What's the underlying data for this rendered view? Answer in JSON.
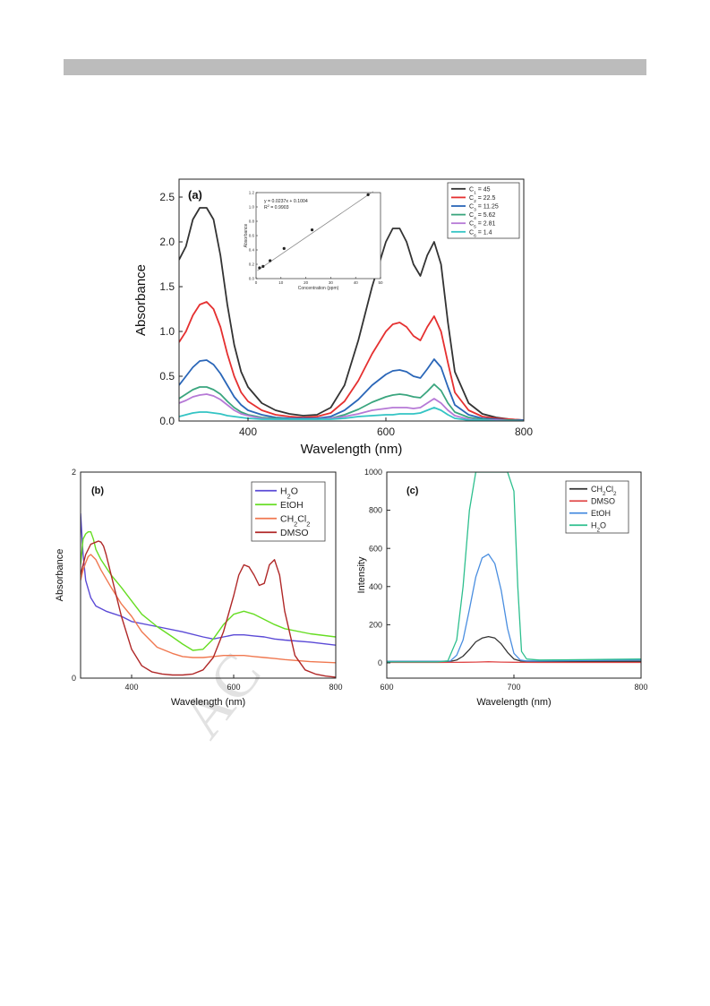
{
  "watermark": "AC",
  "chart_data": [
    {
      "panel": "(a)",
      "type": "line",
      "xlabel": "Wavelength (nm)",
      "ylabel": "Absorbance",
      "xlim": [
        300,
        800
      ],
      "ylim": [
        0,
        2.7
      ],
      "xticks": [
        400,
        600,
        800
      ],
      "yticks": [
        0.0,
        0.5,
        1.0,
        1.5,
        2.0,
        2.5
      ],
      "legend_position": "top-right",
      "series": [
        {
          "name": "C1 = 45",
          "label_main": "C",
          "label_sub": "1",
          "label_rest": " = 45",
          "color": "#333333",
          "x": [
            300,
            310,
            320,
            330,
            340,
            350,
            360,
            370,
            380,
            390,
            400,
            420,
            440,
            460,
            480,
            500,
            520,
            540,
            560,
            580,
            600,
            610,
            620,
            630,
            640,
            650,
            660,
            670,
            680,
            690,
            700,
            720,
            740,
            760,
            780,
            800
          ],
          "y": [
            1.8,
            1.95,
            2.25,
            2.38,
            2.38,
            2.25,
            1.85,
            1.3,
            0.85,
            0.55,
            0.38,
            0.2,
            0.12,
            0.08,
            0.06,
            0.07,
            0.15,
            0.4,
            0.9,
            1.5,
            2.0,
            2.15,
            2.15,
            2.0,
            1.75,
            1.62,
            1.85,
            2.0,
            1.75,
            1.1,
            0.55,
            0.2,
            0.08,
            0.04,
            0.02,
            0.01
          ]
        },
        {
          "name": "C2 = 22.5",
          "label_main": "C",
          "label_sub": "2",
          "label_rest": " = 22.5",
          "color": "#e53030",
          "x": [
            300,
            310,
            320,
            330,
            340,
            350,
            360,
            370,
            380,
            390,
            400,
            420,
            440,
            460,
            480,
            500,
            520,
            540,
            560,
            580,
            600,
            610,
            620,
            630,
            640,
            650,
            660,
            670,
            680,
            690,
            700,
            720,
            740,
            760,
            780,
            800
          ],
          "y": [
            0.88,
            1.0,
            1.18,
            1.3,
            1.33,
            1.25,
            1.05,
            0.75,
            0.5,
            0.32,
            0.22,
            0.12,
            0.07,
            0.05,
            0.04,
            0.05,
            0.09,
            0.22,
            0.45,
            0.75,
            1.0,
            1.08,
            1.1,
            1.05,
            0.95,
            0.9,
            1.05,
            1.17,
            1.0,
            0.65,
            0.32,
            0.12,
            0.05,
            0.03,
            0.02,
            0.01
          ]
        },
        {
          "name": "C3 = 11.25",
          "label_main": "C",
          "label_sub": "3",
          "label_rest": " = 11.25",
          "color": "#2a66b8",
          "x": [
            300,
            310,
            320,
            330,
            340,
            350,
            360,
            370,
            380,
            390,
            400,
            420,
            440,
            460,
            480,
            500,
            520,
            540,
            560,
            580,
            600,
            610,
            620,
            630,
            640,
            650,
            660,
            670,
            680,
            690,
            700,
            720,
            740,
            760,
            780,
            800
          ],
          "y": [
            0.4,
            0.5,
            0.6,
            0.67,
            0.68,
            0.63,
            0.53,
            0.4,
            0.27,
            0.18,
            0.12,
            0.07,
            0.04,
            0.03,
            0.03,
            0.03,
            0.05,
            0.12,
            0.24,
            0.4,
            0.52,
            0.56,
            0.57,
            0.55,
            0.5,
            0.48,
            0.58,
            0.69,
            0.6,
            0.38,
            0.18,
            0.07,
            0.03,
            0.02,
            0.01,
            0.01
          ]
        },
        {
          "name": "C4 = 5.62",
          "label_main": "C",
          "label_sub": "4",
          "label_rest": " = 5.62",
          "color": "#3aa57e",
          "x": [
            300,
            310,
            320,
            330,
            340,
            350,
            360,
            370,
            380,
            390,
            400,
            420,
            440,
            460,
            480,
            500,
            520,
            540,
            560,
            580,
            600,
            610,
            620,
            630,
            640,
            650,
            660,
            670,
            680,
            690,
            700,
            720,
            740,
            760,
            780,
            800
          ],
          "y": [
            0.25,
            0.3,
            0.35,
            0.38,
            0.38,
            0.35,
            0.3,
            0.22,
            0.15,
            0.1,
            0.07,
            0.04,
            0.03,
            0.02,
            0.02,
            0.02,
            0.03,
            0.07,
            0.13,
            0.21,
            0.27,
            0.29,
            0.3,
            0.29,
            0.27,
            0.26,
            0.33,
            0.41,
            0.34,
            0.2,
            0.1,
            0.04,
            0.02,
            0.01,
            0.01,
            0.0
          ]
        },
        {
          "name": "C5 = 2.81",
          "label_main": "C",
          "label_sub": "5",
          "label_rest": " = 2.81",
          "color": "#b679d6",
          "x": [
            300,
            310,
            320,
            330,
            340,
            350,
            360,
            370,
            380,
            390,
            400,
            420,
            440,
            460,
            480,
            500,
            520,
            540,
            560,
            580,
            600,
            610,
            620,
            630,
            640,
            650,
            660,
            670,
            680,
            690,
            700,
            720,
            740,
            760,
            780,
            800
          ],
          "y": [
            0.2,
            0.23,
            0.27,
            0.29,
            0.3,
            0.28,
            0.24,
            0.18,
            0.12,
            0.08,
            0.06,
            0.03,
            0.02,
            0.02,
            0.02,
            0.02,
            0.03,
            0.05,
            0.08,
            0.12,
            0.14,
            0.15,
            0.15,
            0.15,
            0.14,
            0.15,
            0.2,
            0.25,
            0.2,
            0.12,
            0.06,
            0.02,
            0.01,
            0.01,
            0.0,
            0.0
          ]
        },
        {
          "name": "C6 = 1.4",
          "label_main": "C",
          "label_sub": "6",
          "label_rest": " = 1.4",
          "color": "#33c4c4",
          "x": [
            300,
            310,
            320,
            330,
            340,
            350,
            360,
            370,
            380,
            390,
            400,
            420,
            440,
            460,
            480,
            500,
            520,
            540,
            560,
            580,
            600,
            610,
            620,
            630,
            640,
            650,
            660,
            670,
            680,
            690,
            700,
            720,
            740,
            760,
            780,
            800
          ],
          "y": [
            0.05,
            0.07,
            0.09,
            0.1,
            0.1,
            0.09,
            0.08,
            0.06,
            0.05,
            0.04,
            0.03,
            0.02,
            0.02,
            0.02,
            0.02,
            0.02,
            0.02,
            0.03,
            0.05,
            0.06,
            0.07,
            0.07,
            0.08,
            0.08,
            0.08,
            0.09,
            0.12,
            0.15,
            0.12,
            0.07,
            0.03,
            0.01,
            0.01,
            0.0,
            0.0,
            0.0
          ]
        }
      ],
      "inset": {
        "type": "scatter",
        "xlabel": "Concentration (ppm)",
        "ylabel": "Absorbance",
        "xlim": [
          0,
          50
        ],
        "ylim": [
          0,
          1.2
        ],
        "xticks": [
          0,
          10,
          20,
          30,
          40,
          50
        ],
        "yticks": [
          0.0,
          0.2,
          0.4,
          0.6,
          0.8,
          1.0,
          1.2
        ],
        "equation": "y = 0.0237x + 0.1004",
        "r2_label": "R",
        "r2_sup": "2",
        "r2_value": " = 0.9903",
        "points": {
          "x": [
            1.4,
            2.81,
            5.62,
            11.25,
            22.5,
            45
          ],
          "y": [
            0.15,
            0.17,
            0.25,
            0.42,
            0.68,
            1.17
          ]
        },
        "fit": {
          "slope": 0.0237,
          "intercept": 0.1004
        }
      }
    },
    {
      "panel": "(b)",
      "type": "line",
      "xlabel": "Wavelength (nm)",
      "ylabel": "Absorbance",
      "xlim": [
        300,
        800
      ],
      "ylim": [
        0,
        2
      ],
      "xticks": [
        400,
        600,
        800
      ],
      "yticks": [
        0,
        2
      ],
      "legend_position": "top-right",
      "series": [
        {
          "name": "H2O",
          "parts": [
            [
              "H",
              ""
            ],
            [
              "2",
              "sub"
            ],
            [
              "O",
              ""
            ]
          ],
          "color": "#5b4ad6",
          "x": [
            300,
            305,
            310,
            320,
            330,
            350,
            380,
            400,
            450,
            500,
            540,
            560,
            580,
            600,
            620,
            640,
            660,
            680,
            700,
            750,
            800
          ],
          "y": [
            1.6,
            1.2,
            0.95,
            0.78,
            0.7,
            0.65,
            0.6,
            0.55,
            0.5,
            0.45,
            0.4,
            0.38,
            0.4,
            0.42,
            0.42,
            0.41,
            0.4,
            0.38,
            0.37,
            0.35,
            0.32
          ]
        },
        {
          "name": "EtOH",
          "parts": [
            [
              "EtOH",
              ""
            ]
          ],
          "color": "#66dd22",
          "x": [
            300,
            305,
            310,
            315,
            320,
            325,
            330,
            340,
            360,
            380,
            400,
            420,
            450,
            480,
            500,
            520,
            540,
            560,
            580,
            600,
            620,
            640,
            660,
            680,
            700,
            750,
            800
          ],
          "y": [
            1.1,
            1.35,
            1.4,
            1.42,
            1.42,
            1.35,
            1.25,
            1.15,
            1.0,
            0.88,
            0.75,
            0.62,
            0.5,
            0.4,
            0.33,
            0.27,
            0.28,
            0.38,
            0.52,
            0.62,
            0.65,
            0.62,
            0.57,
            0.52,
            0.48,
            0.43,
            0.4
          ]
        },
        {
          "name": "CH2Cl2",
          "parts": [
            [
              "CH",
              ""
            ],
            [
              "2",
              "sub"
            ],
            [
              "Cl",
              ""
            ],
            [
              "2",
              "sub"
            ]
          ],
          "color": "#f07850",
          "x": [
            300,
            305,
            310,
            315,
            320,
            330,
            340,
            360,
            380,
            400,
            420,
            450,
            480,
            500,
            520,
            540,
            560,
            580,
            600,
            620,
            640,
            660,
            680,
            700,
            750,
            800
          ],
          "y": [
            0.95,
            1.05,
            1.12,
            1.18,
            1.2,
            1.15,
            1.05,
            0.88,
            0.72,
            0.6,
            0.45,
            0.3,
            0.24,
            0.21,
            0.2,
            0.2,
            0.21,
            0.22,
            0.22,
            0.22,
            0.21,
            0.2,
            0.19,
            0.18,
            0.16,
            0.15
          ]
        },
        {
          "name": "DMSO",
          "parts": [
            [
              "DMSO",
              ""
            ]
          ],
          "color": "#b02828",
          "x": [
            300,
            305,
            310,
            320,
            330,
            335,
            340,
            345,
            350,
            360,
            380,
            400,
            420,
            440,
            460,
            480,
            500,
            520,
            540,
            560,
            580,
            600,
            610,
            620,
            630,
            640,
            650,
            660,
            670,
            680,
            690,
            700,
            720,
            740,
            760,
            780,
            800
          ],
          "y": [
            1.0,
            1.1,
            1.2,
            1.3,
            1.32,
            1.33,
            1.32,
            1.28,
            1.2,
            1.0,
            0.6,
            0.28,
            0.12,
            0.06,
            0.04,
            0.03,
            0.03,
            0.04,
            0.08,
            0.2,
            0.45,
            0.8,
            1.0,
            1.1,
            1.08,
            1.0,
            0.9,
            0.92,
            1.1,
            1.15,
            1.0,
            0.65,
            0.22,
            0.08,
            0.04,
            0.02,
            0.01
          ]
        }
      ]
    },
    {
      "panel": "(c)",
      "type": "line",
      "xlabel": "Wavelength (nm)",
      "ylabel": "Intensity",
      "xlim": [
        600,
        800
      ],
      "ylim": [
        -80,
        1000
      ],
      "xticks": [
        600,
        700,
        800
      ],
      "yticks": [
        0,
        200,
        400,
        600,
        800,
        1000
      ],
      "legend_position": "top-right",
      "series": [
        {
          "name": "CH2Cl2",
          "parts": [
            [
              "CH",
              ""
            ],
            [
              "2",
              "sub"
            ],
            [
              "Cl",
              ""
            ],
            [
              "2",
              "sub"
            ]
          ],
          "color": "#333333",
          "x": [
            600,
            640,
            650,
            655,
            660,
            665,
            670,
            675,
            680,
            685,
            690,
            695,
            700,
            705,
            710,
            720,
            800
          ],
          "y": [
            8,
            8,
            8,
            15,
            35,
            70,
            110,
            130,
            138,
            130,
            100,
            55,
            20,
            10,
            8,
            8,
            8
          ]
        },
        {
          "name": "DMSO",
          "parts": [
            [
              "DMSO",
              ""
            ]
          ],
          "color": "#e04848",
          "x": [
            600,
            640,
            660,
            670,
            680,
            690,
            700,
            720,
            800
          ],
          "y": [
            2,
            2,
            3,
            4,
            6,
            4,
            3,
            2,
            2
          ]
        },
        {
          "name": "EtOH",
          "parts": [
            [
              "EtOH",
              ""
            ]
          ],
          "color": "#4a8ee0",
          "x": [
            600,
            640,
            650,
            655,
            660,
            665,
            670,
            675,
            680,
            685,
            690,
            695,
            700,
            705,
            710,
            720,
            800
          ],
          "y": [
            8,
            8,
            10,
            40,
            120,
            280,
            450,
            550,
            570,
            520,
            380,
            180,
            50,
            15,
            10,
            10,
            15
          ]
        },
        {
          "name": "H2O",
          "parts": [
            [
              "H",
              ""
            ],
            [
              "2",
              "sub"
            ],
            [
              "O",
              ""
            ]
          ],
          "color": "#2ebf8e",
          "x": [
            600,
            640,
            648,
            655,
            660,
            665,
            670,
            675,
            680,
            685,
            690,
            695,
            700,
            703,
            706,
            710,
            720,
            800
          ],
          "y": [
            5,
            5,
            10,
            120,
            400,
            800,
            1000,
            1000,
            1000,
            1000,
            1000,
            1000,
            900,
            400,
            60,
            20,
            15,
            20
          ]
        }
      ]
    }
  ]
}
